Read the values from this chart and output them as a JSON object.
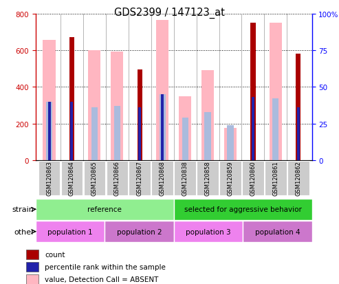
{
  "title": "GDS2399 / 147123_at",
  "samples": [
    "GSM120863",
    "GSM120864",
    "GSM120865",
    "GSM120866",
    "GSM120867",
    "GSM120868",
    "GSM120838",
    "GSM120858",
    "GSM120859",
    "GSM120860",
    "GSM120861",
    "GSM120862"
  ],
  "count_values": [
    0,
    670,
    0,
    0,
    495,
    0,
    0,
    0,
    0,
    750,
    0,
    580
  ],
  "value_absent": [
    655,
    0,
    600,
    593,
    0,
    765,
    350,
    492,
    175,
    0,
    750,
    0
  ],
  "rank_absent_pct": [
    40,
    0,
    36,
    37,
    0,
    45,
    29,
    33,
    24,
    0,
    42,
    0
  ],
  "percentile_rank_pct": [
    40,
    40,
    0,
    0,
    36,
    45,
    0,
    0,
    0,
    43,
    0,
    36
  ],
  "ylim_left": [
    0,
    800
  ],
  "ylim_right": [
    0,
    100
  ],
  "yticks_left": [
    0,
    200,
    400,
    600,
    800
  ],
  "yticks_right": [
    0,
    25,
    50,
    75,
    100
  ],
  "strain_groups": [
    {
      "label": "reference",
      "start": 0,
      "end": 6,
      "color": "#90EE90"
    },
    {
      "label": "selected for aggressive behavior",
      "start": 6,
      "end": 12,
      "color": "#32CD32"
    }
  ],
  "population_groups": [
    {
      "label": "population 1",
      "start": 0,
      "end": 3,
      "color": "#EE82EE"
    },
    {
      "label": "population 2",
      "start": 3,
      "end": 6,
      "color": "#CC77CC"
    },
    {
      "label": "population 3",
      "start": 6,
      "end": 9,
      "color": "#EE82EE"
    },
    {
      "label": "population 4",
      "start": 9,
      "end": 12,
      "color": "#CC77CC"
    }
  ],
  "count_color": "#AA0000",
  "value_absent_color": "#FFB6C1",
  "rank_absent_color": "#AABBDD",
  "percentile_color": "#2222AA",
  "legend_items": [
    {
      "label": "count",
      "color": "#AA0000"
    },
    {
      "label": "percentile rank within the sample",
      "color": "#2222AA"
    },
    {
      "label": "value, Detection Call = ABSENT",
      "color": "#FFB6C1"
    },
    {
      "label": "rank, Detection Call = ABSENT",
      "color": "#AABBDD"
    }
  ]
}
